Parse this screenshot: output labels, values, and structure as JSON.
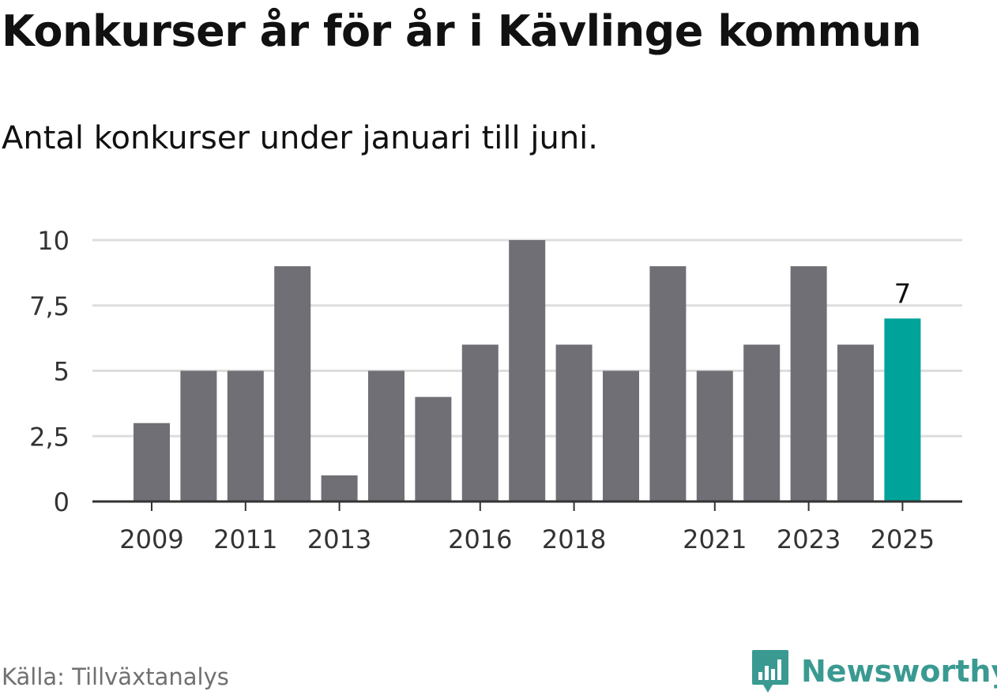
{
  "header": {
    "title": "Konkurser år för år i Kävlinge kommun",
    "subtitle": "Antal konkurser under januari till juni."
  },
  "footer": {
    "source": "Källa: Tillväxtanalys",
    "brand": "Newsworthy"
  },
  "colors": {
    "bar": "#706f75",
    "highlight": "#00a399",
    "grid": "#dddddd",
    "axis": "#333333",
    "brand": "#3a9a92"
  },
  "icons": {
    "brand_logo": "bar-chart-speech-bubble-icon"
  },
  "chart_data": {
    "type": "bar",
    "title": "Konkurser år för år i Kävlinge kommun",
    "subtitle": "Antal konkurser under januari till juni.",
    "x": [
      2009,
      2010,
      2011,
      2012,
      2013,
      2014,
      2015,
      2016,
      2017,
      2018,
      2019,
      2020,
      2021,
      2022,
      2023,
      2024,
      2025
    ],
    "values": [
      3,
      5,
      5,
      9,
      1,
      5,
      4,
      6,
      10,
      6,
      5,
      9,
      5,
      6,
      9,
      6,
      7
    ],
    "x_tick_labels": [
      "2009",
      "2011",
      "2013",
      "2016",
      "2018",
      "2021",
      "2023",
      "2025"
    ],
    "y_ticks": [
      0,
      2.5,
      5,
      7.5,
      10
    ],
    "y_tick_labels": [
      "0",
      "2,5",
      "5",
      "7,5",
      "10"
    ],
    "ylim": [
      0,
      10
    ],
    "grid": true,
    "highlight": {
      "x": 2025,
      "label": "7"
    }
  }
}
